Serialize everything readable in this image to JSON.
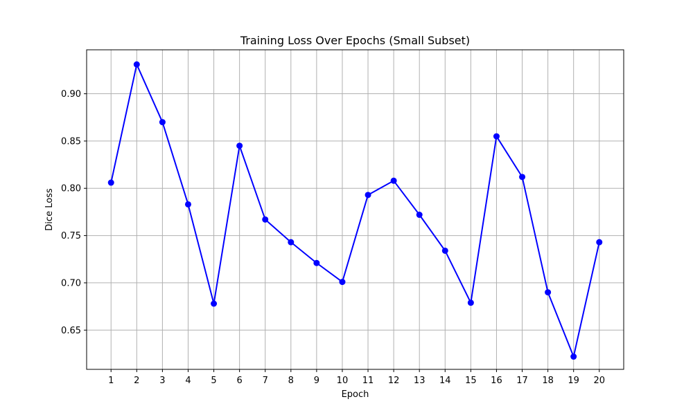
{
  "chart_data": {
    "type": "line",
    "title": "Training Loss Over Epochs (Small Subset)",
    "xlabel": "Epoch",
    "ylabel": "Dice Loss",
    "x": [
      1,
      2,
      3,
      4,
      5,
      6,
      7,
      8,
      9,
      10,
      11,
      12,
      13,
      14,
      15,
      16,
      17,
      18,
      19,
      20
    ],
    "xtick_labels": [
      "1",
      "2",
      "3",
      "4",
      "5",
      "6",
      "7",
      "8",
      "9",
      "10",
      "11",
      "12",
      "13",
      "14",
      "15",
      "16",
      "17",
      "18",
      "19",
      "20"
    ],
    "yticks": [
      0.65,
      0.7,
      0.75,
      0.8,
      0.85,
      0.9
    ],
    "ytick_labels": [
      "0.65",
      "0.70",
      "0.75",
      "0.80",
      "0.85",
      "0.90"
    ],
    "xlim": [
      0.05,
      20.95
    ],
    "ylim": [
      0.6085,
      0.9465
    ],
    "grid": true,
    "series": [
      {
        "color": "#0000ff",
        "marker": "circle",
        "values": [
          0.806,
          0.931,
          0.87,
          0.783,
          0.678,
          0.845,
          0.767,
          0.743,
          0.721,
          0.701,
          0.793,
          0.808,
          0.772,
          0.734,
          0.679,
          0.855,
          0.812,
          0.69,
          0.622,
          0.743
        ]
      }
    ]
  }
}
